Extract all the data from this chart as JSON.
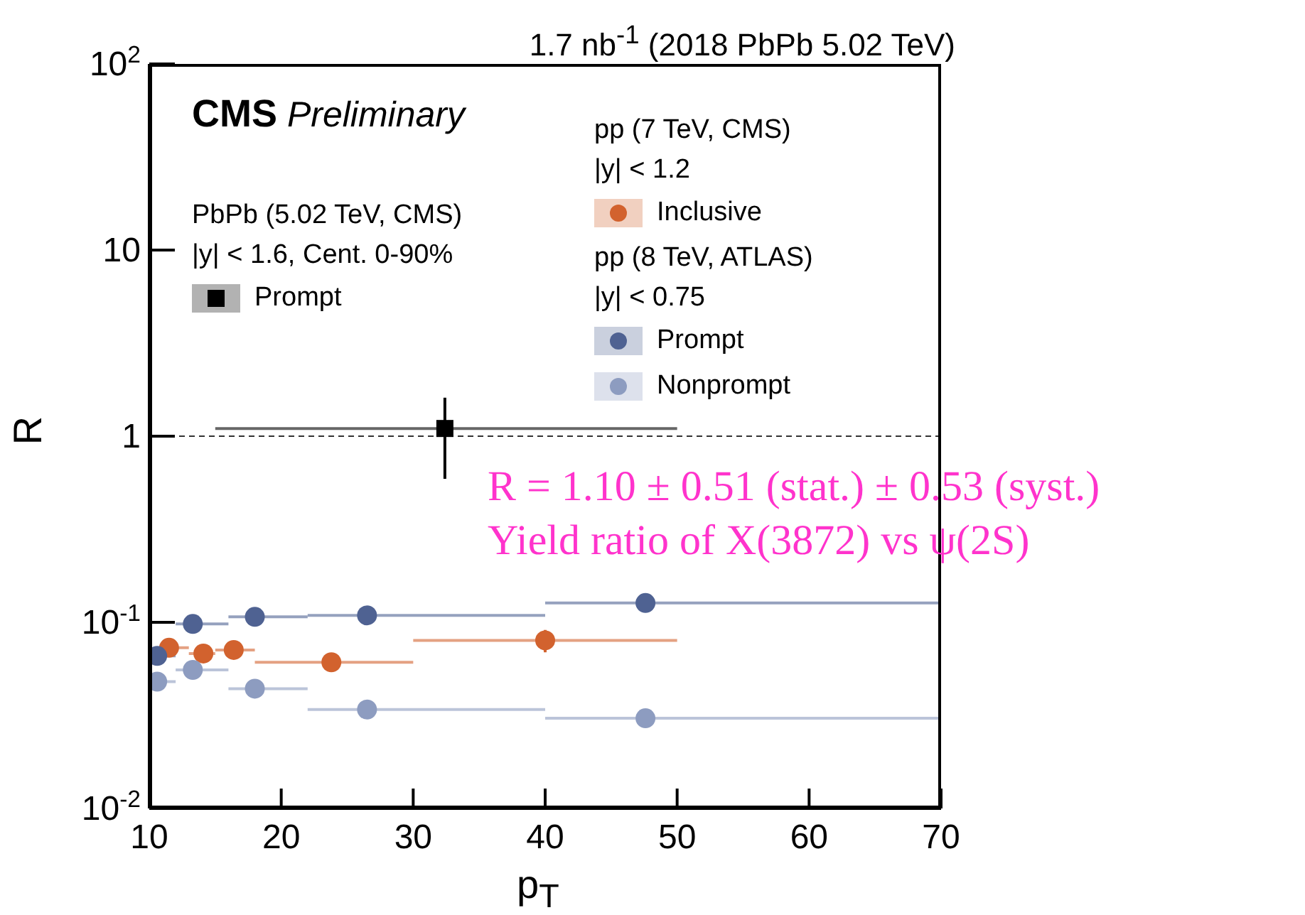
{
  "chart_data": {
    "type": "scatter",
    "title": "1.7 nb$^{-1}$ (2018 PbPb 5.02 TeV)",
    "xlabel": "p$_{T}$",
    "ylabel": "R",
    "xlim": [
      10,
      70
    ],
    "xticks": [
      10,
      20,
      30,
      40,
      50,
      60,
      70
    ],
    "ylim": [
      0.01,
      100
    ],
    "yticks": [
      {
        "value": 0.01,
        "label": "10$^{-2}$"
      },
      {
        "value": 0.1,
        "label": "10$^{-1}$"
      },
      {
        "value": 1,
        "label": "1"
      },
      {
        "value": 10,
        "label": "10"
      },
      {
        "value": 100,
        "label": "10$^{2}$"
      }
    ],
    "log": "y",
    "grid": false,
    "legend": "top",
    "series": [
      {
        "name": "Prompt",
        "color": "#000000",
        "marker": "square",
        "x": [
          32.4
        ],
        "values": [
          1.1
        ],
        "xerrors": [
          [
            15,
            50
          ]
        ],
        "errors": [
          [
            0.59,
            1.61
          ]
        ]
      },
      {
        "name": "Inclusive",
        "color": "#d2622e",
        "marker": "circle",
        "x": [
          11.5,
          14.1,
          16.4,
          23.8,
          40.0
        ],
        "values": [
          0.073,
          0.068,
          0.071,
          0.061,
          0.08
        ],
        "xerrors": [
          [
            11,
            13
          ],
          [
            13,
            15
          ],
          [
            15,
            18
          ],
          [
            18,
            30
          ],
          [
            30,
            50
          ]
        ],
        "errors": [
          null,
          null,
          null,
          null,
          [
            0.069,
            0.091
          ]
        ]
      },
      {
        "name": "Prompt",
        "color": "#4f6292",
        "marker": "circle",
        "x": [
          10.6,
          13.3,
          18.0,
          26.5,
          47.6
        ],
        "values": [
          0.066,
          0.098,
          0.107,
          0.109,
          0.127
        ],
        "xerrors": [
          [
            10,
            12
          ],
          [
            12,
            16
          ],
          [
            16,
            22
          ],
          [
            22,
            40
          ],
          [
            40,
            70
          ]
        ]
      },
      {
        "name": "Nonprompt",
        "color": "#8d9cc0",
        "marker": "circle",
        "x": [
          10.6,
          13.3,
          18.0,
          26.5,
          47.6
        ],
        "values": [
          0.048,
          0.0555,
          0.044,
          0.034,
          0.0305
        ],
        "xerrors": [
          [
            10,
            12
          ],
          [
            12,
            16
          ],
          [
            16,
            22
          ],
          [
            22,
            40
          ],
          [
            40,
            70
          ]
        ]
      }
    ],
    "ref_lines": [
      {
        "axis": "y",
        "value": 1,
        "line_style": "dashed",
        "color": "#333333"
      }
    ],
    "annotations": [
      "CMS Preliminary",
      "PbPb (5.02 TeV, CMS)",
      "|y| < 1.6, Cent. 0-90%",
      "pp (7 TeV, CMS)",
      "|y| < 1.2",
      "pp (8 TeV, ATLAS)",
      "|y| < 0.75",
      "R = 1.10 ± 0.51 (stat.) ± 0.53 (syst.)",
      "Yield ratio of X(3872) vs ψ(2S)"
    ]
  }
}
